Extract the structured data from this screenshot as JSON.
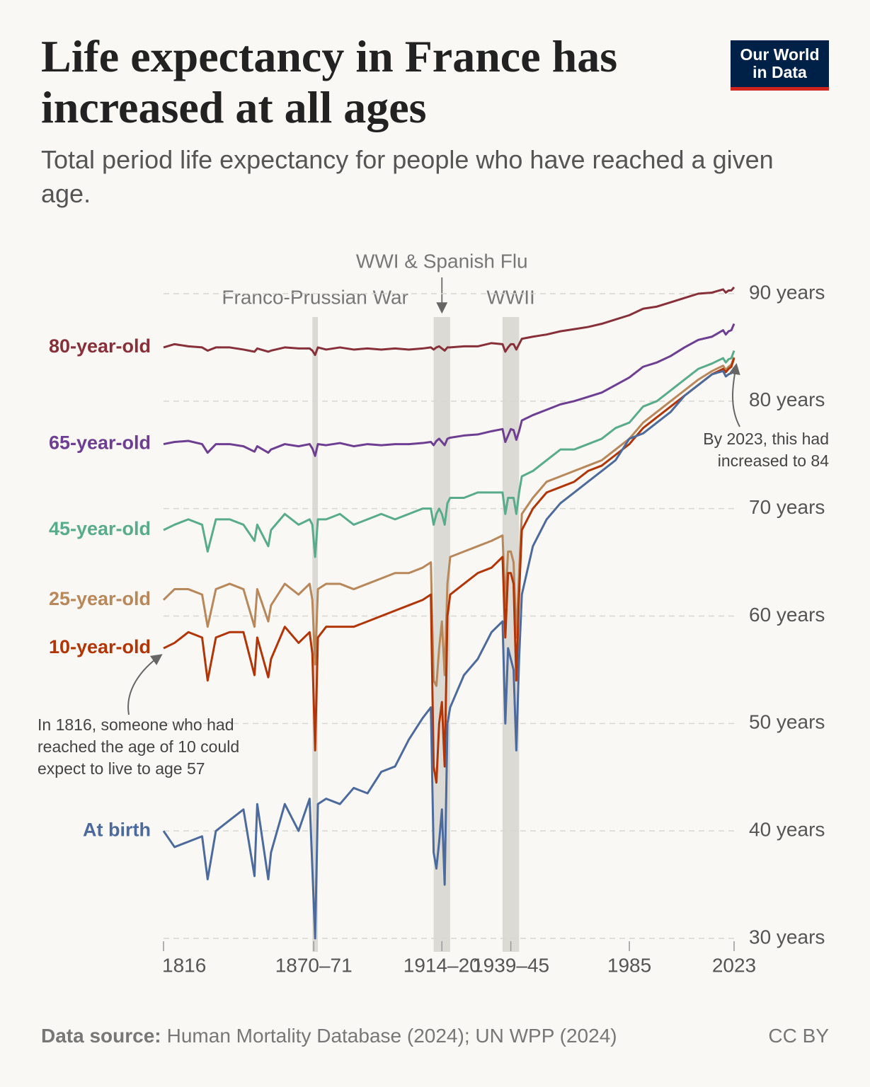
{
  "chart_data": {
    "type": "line",
    "title": "Life expectancy in France has increased at all ages",
    "subtitle": "Total period life expectancy for people who have reached a given age.",
    "logo": "Our World in Data",
    "source_label": "Data source:",
    "source": "Human Mortality Database (2024); UN WPP (2024)",
    "license": "CC BY",
    "xlim": [
      1816,
      2023
    ],
    "ylim": [
      30,
      90
    ],
    "xticks": [
      1816,
      {
        "value": 1870.5,
        "label": "1870–71"
      },
      {
        "value": 1917,
        "label": "1914–20"
      },
      {
        "value": 1942,
        "label": "1939–45"
      },
      1985,
      2023
    ],
    "yticks": [
      {
        "value": 30,
        "label": "30 years"
      },
      {
        "value": 40,
        "label": "40 years"
      },
      {
        "value": 50,
        "label": "50 years"
      },
      {
        "value": 60,
        "label": "60 years"
      },
      {
        "value": 70,
        "label": "70 years"
      },
      {
        "value": 80,
        "label": "80 years"
      },
      {
        "value": 90,
        "label": "90 years"
      }
    ],
    "grid": true,
    "highlights": [
      {
        "label": "Franco-Prussian War",
        "start": 1870,
        "end": 1872
      },
      {
        "label": "WWI & Spanish Flu",
        "start": 1914,
        "end": 1920
      },
      {
        "label": "WWII",
        "start": 1939,
        "end": 1945
      }
    ],
    "annotations": [
      {
        "lines": [
          "In 1816, someone who had",
          "reached the age of 10 could",
          "expect to live to age 57"
        ]
      },
      {
        "lines": [
          "By 2023, this had",
          "increased to 84"
        ]
      }
    ],
    "x": [
      1816,
      1820,
      1825,
      1830,
      1832,
      1835,
      1840,
      1845,
      1849,
      1850,
      1854,
      1855,
      1860,
      1865,
      1869,
      1870,
      1871,
      1872,
      1875,
      1880,
      1885,
      1890,
      1895,
      1900,
      1905,
      1910,
      1913,
      1914,
      1915,
      1916,
      1917,
      1918,
      1919,
      1920,
      1925,
      1930,
      1935,
      1939,
      1940,
      1941,
      1942,
      1943,
      1944,
      1945,
      1946,
      1950,
      1955,
      1960,
      1965,
      1970,
      1975,
      1980,
      1985,
      1990,
      1995,
      2000,
      2005,
      2010,
      2015,
      2019,
      2020,
      2021,
      2022,
      2023
    ],
    "series": [
      {
        "name": "80-year-old",
        "color": "#883039",
        "values": [
          85,
          85.3,
          85.1,
          85,
          84.7,
          85,
          85,
          84.8,
          84.6,
          84.9,
          84.6,
          84.7,
          85,
          84.9,
          84.9,
          84.7,
          84.3,
          85,
          84.8,
          85,
          84.8,
          84.9,
          84.8,
          84.9,
          84.8,
          84.9,
          85,
          84.8,
          85,
          85.1,
          84.9,
          84.7,
          85,
          85,
          85.1,
          85.1,
          85.4,
          85.3,
          84.6,
          85,
          85.3,
          85.3,
          84.8,
          85.3,
          85.8,
          86,
          86.2,
          86.5,
          86.7,
          86.9,
          87.2,
          87.6,
          88,
          88.6,
          88.8,
          89.2,
          89.6,
          90,
          90.1,
          90.4,
          90.1,
          90.3,
          90.3,
          90.6
        ]
      },
      {
        "name": "65-year-old",
        "color": "#6d3e91",
        "values": [
          76,
          76.2,
          76.3,
          76,
          75.2,
          76,
          76,
          75.8,
          75.3,
          75.8,
          75.2,
          75.5,
          76,
          75.8,
          76,
          75.6,
          74.9,
          76,
          75.9,
          76.1,
          75.8,
          76,
          75.9,
          76,
          76,
          76.1,
          76.2,
          75.9,
          76.3,
          76.5,
          76.2,
          75.9,
          76.5,
          76.6,
          76.8,
          76.9,
          77.2,
          77.4,
          76.2,
          76.8,
          77.4,
          77.3,
          76.4,
          77.2,
          78.2,
          78.7,
          79.2,
          79.7,
          80,
          80.4,
          80.8,
          81.5,
          82.2,
          83.2,
          83.6,
          84.2,
          85,
          85.7,
          86,
          86.6,
          86.2,
          86.5,
          86.6,
          87.2
        ]
      },
      {
        "name": "45-year-old",
        "color": "#58ac8c",
        "values": [
          68,
          68.5,
          69,
          68.5,
          66,
          69,
          69,
          68.5,
          67,
          68.5,
          66.5,
          68,
          69.5,
          68.5,
          69,
          68.5,
          65.5,
          69,
          69,
          69.5,
          68.5,
          69,
          69.5,
          69,
          69.5,
          70,
          70,
          68.5,
          69.5,
          70,
          69.5,
          68.5,
          70.5,
          71,
          71,
          71.5,
          71.5,
          71.5,
          69.5,
          71,
          71,
          71,
          69.5,
          71.5,
          73,
          73.5,
          74.5,
          75.5,
          75.5,
          76,
          76.5,
          77.5,
          78,
          79.5,
          80,
          81,
          82,
          83,
          83.5,
          84,
          83.6,
          83.9,
          84,
          84.7
        ]
      },
      {
        "name": "25-year-old",
        "color": "#b8875a",
        "values": [
          61.5,
          62.5,
          62.5,
          62,
          59,
          62.5,
          63,
          62.5,
          59,
          62.5,
          59.5,
          61,
          63,
          62,
          63,
          61.5,
          55.5,
          62.5,
          63,
          63,
          62.5,
          63,
          63.5,
          64,
          64,
          64.5,
          65,
          54,
          53.5,
          57,
          59.5,
          54.5,
          63,
          65.5,
          66,
          66.5,
          67,
          67.5,
          61,
          66,
          66,
          65,
          58,
          64,
          69.5,
          71,
          72.5,
          73,
          73.5,
          74,
          74.5,
          75.5,
          76.5,
          78,
          79,
          80,
          81,
          82,
          82.8,
          83.3,
          82.9,
          83.2,
          83.4,
          84.1
        ]
      },
      {
        "name": "10-year-old",
        "color": "#b13507",
        "values": [
          57,
          57.5,
          58.5,
          58,
          54,
          58,
          58.5,
          58.5,
          54.5,
          58,
          54.3,
          56,
          59,
          57.5,
          58.5,
          56.5,
          47.5,
          58,
          59,
          59,
          59,
          59.5,
          60,
          60.5,
          61,
          61.5,
          62,
          46,
          44.5,
          50,
          52,
          46,
          60,
          62,
          63,
          64,
          64.5,
          65.5,
          58,
          64,
          64,
          63,
          54,
          62,
          68,
          70,
          71.5,
          72,
          72.5,
          73.5,
          74,
          75,
          76,
          77.5,
          78.5,
          79.5,
          80.5,
          81.5,
          82.5,
          83,
          82.7,
          83,
          83.2,
          84
        ]
      },
      {
        "name": "At birth",
        "color": "#4c6a9c",
        "values": [
          40,
          38.5,
          39,
          39.5,
          35.5,
          40,
          41,
          42,
          35.8,
          42.5,
          35.5,
          38,
          42.5,
          40,
          43,
          36.5,
          30,
          42.5,
          43,
          42.5,
          44,
          43.5,
          45.5,
          46,
          48.5,
          50.5,
          51.5,
          38,
          36.5,
          39,
          42,
          35,
          50,
          51.5,
          54.5,
          56,
          58.5,
          59.5,
          50,
          57,
          56,
          55,
          47.5,
          56,
          62,
          66.5,
          69,
          70.5,
          71.5,
          72.5,
          73.5,
          74.5,
          76.5,
          77,
          78,
          79,
          80.5,
          81.5,
          82.5,
          82.8,
          82.3,
          82.5,
          82.6,
          83.1
        ]
      }
    ]
  }
}
